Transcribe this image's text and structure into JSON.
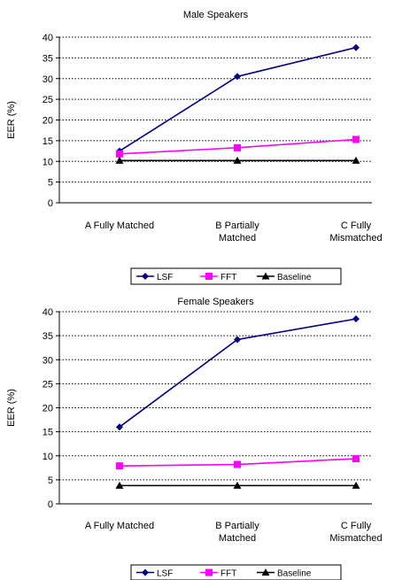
{
  "chart_data": [
    {
      "type": "line",
      "title": "Male Speakers",
      "ylabel": "EER (%)",
      "xlabel": "",
      "ylim": [
        0,
        40
      ],
      "yticks": [
        "0",
        "5",
        "10",
        "15",
        "20",
        "25",
        "30",
        "35",
        "40"
      ],
      "categories": [
        [
          "A Fully Matched"
        ],
        [
          "B Partially",
          "Matched"
        ],
        [
          "C Fully",
          "Mismatched"
        ]
      ],
      "grid": "horizontal dotted",
      "legend_position": "bottom",
      "series": [
        {
          "name": "LSF",
          "color": "#000080",
          "marker": "diamond",
          "values": [
            12.5,
            30.5,
            37.5
          ]
        },
        {
          "name": "FFT",
          "color": "#ff00ff",
          "marker": "square",
          "values": [
            11.8,
            13.3,
            15.3
          ]
        },
        {
          "name": "Baseline",
          "color": "#000000",
          "marker": "triangle",
          "values": [
            10.2,
            10.2,
            10.2
          ]
        }
      ]
    },
    {
      "type": "line",
      "title": "Female Speakers",
      "ylabel": "EER (%)",
      "xlabel": "",
      "ylim": [
        0,
        40
      ],
      "yticks": [
        "0",
        "5",
        "10",
        "15",
        "20",
        "25",
        "30",
        "35",
        "40"
      ],
      "categories": [
        [
          "A Fully Matched"
        ],
        [
          "B Partially",
          "Matched"
        ],
        [
          "C Fully",
          "Mismatched"
        ]
      ],
      "grid": "horizontal dotted",
      "legend_position": "bottom",
      "series": [
        {
          "name": "LSF",
          "color": "#000080",
          "marker": "diamond",
          "values": [
            16,
            34.2,
            38.5
          ]
        },
        {
          "name": "FFT",
          "color": "#ff00ff",
          "marker": "square",
          "values": [
            7.9,
            8.2,
            9.4
          ]
        },
        {
          "name": "Baseline",
          "color": "#000000",
          "marker": "triangle",
          "values": [
            3.8,
            3.8,
            3.8
          ]
        }
      ]
    }
  ]
}
